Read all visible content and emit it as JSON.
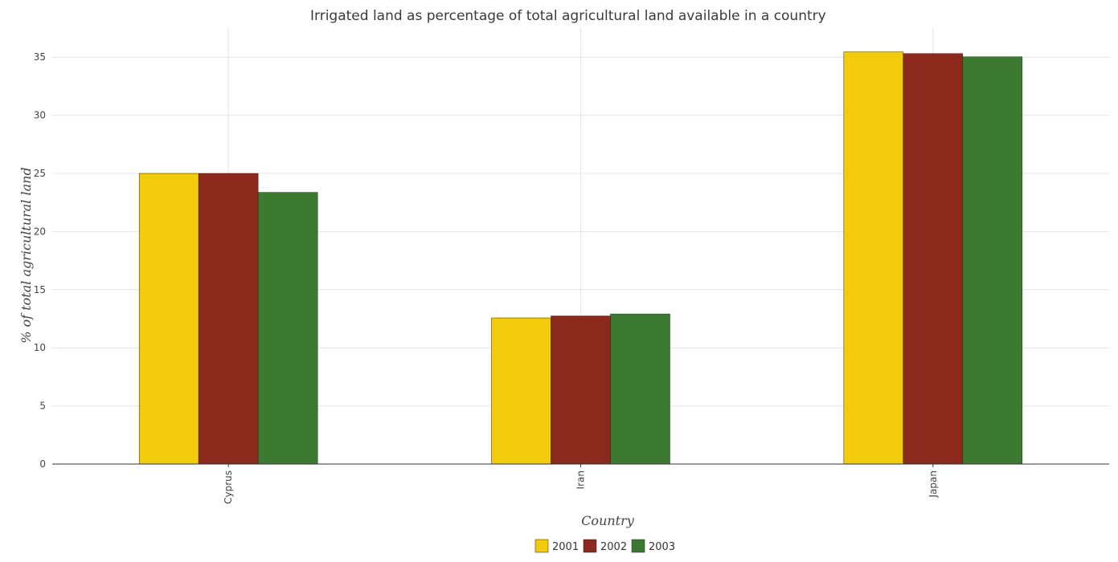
{
  "colors": {
    "2001": "#f2cb0c",
    "2002": "#8b2a1c",
    "2003": "#3c7a31"
  },
  "chart_data": {
    "type": "bar",
    "title": "Irrigated land as percentage of total agricultural land available in a country",
    "xlabel": "Country",
    "ylabel": "% of total agricultural land",
    "categories": [
      "Cyprus",
      "Iran",
      "Japan"
    ],
    "series": [
      {
        "name": "2001",
        "values": [
          25.0,
          12.57,
          35.45
        ]
      },
      {
        "name": "2002",
        "values": [
          25.0,
          12.74,
          35.31
        ]
      },
      {
        "name": "2003",
        "values": [
          23.37,
          12.91,
          35.03
        ]
      }
    ],
    "ylim": [
      0,
      37.5
    ],
    "yticks": [
      0,
      5,
      10,
      15,
      20,
      25,
      30,
      35
    ],
    "grid": true,
    "legend_position": "bottom-center"
  }
}
